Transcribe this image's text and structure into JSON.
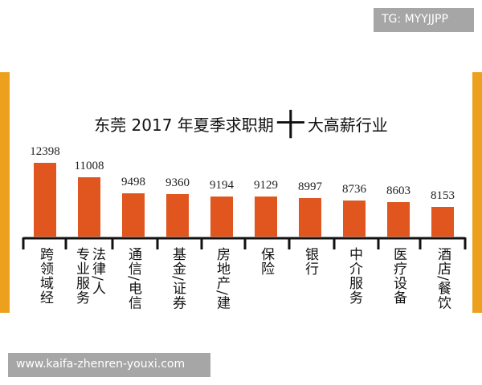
{
  "chart_data": {
    "type": "bar",
    "title_prefix": "东莞 2017 年夏季求职期",
    "title_big": "十",
    "title_suffix": "大高薪行业",
    "categories": [
      "跨领域经",
      "法律/人力 专业服务",
      "通信/电信",
      "基金/证券",
      "房地产/建",
      "保险",
      "银行",
      "中介服务",
      "医疗设备",
      "酒店/餐饮"
    ],
    "category_columns": [
      [
        "跨领域经"
      ],
      [
        "法律/人",
        "专业服务"
      ],
      [
        "通信/电信"
      ],
      [
        "基金/证券"
      ],
      [
        "房地产/建"
      ],
      [
        "保险"
      ],
      [
        "银行"
      ],
      [
        "中介服务"
      ],
      [
        "医疗设备"
      ],
      [
        "酒店/餐饮"
      ]
    ],
    "values": [
      12398,
      11008,
      9498,
      9360,
      9194,
      9129,
      8997,
      8736,
      8603,
      8153
    ],
    "value_labels": [
      "12398",
      "11008",
      "9498",
      "9360",
      "9194",
      "9129",
      "8997",
      "8736",
      "8603",
      "8153"
    ],
    "bar_color": "#e0561e",
    "frame_color": "#eda01e",
    "grid": false,
    "legend": "none"
  },
  "watermarks": {
    "top": "TG: MYYJJPP",
    "bottom": "www.kaifa-zhenren-youxi.com"
  }
}
